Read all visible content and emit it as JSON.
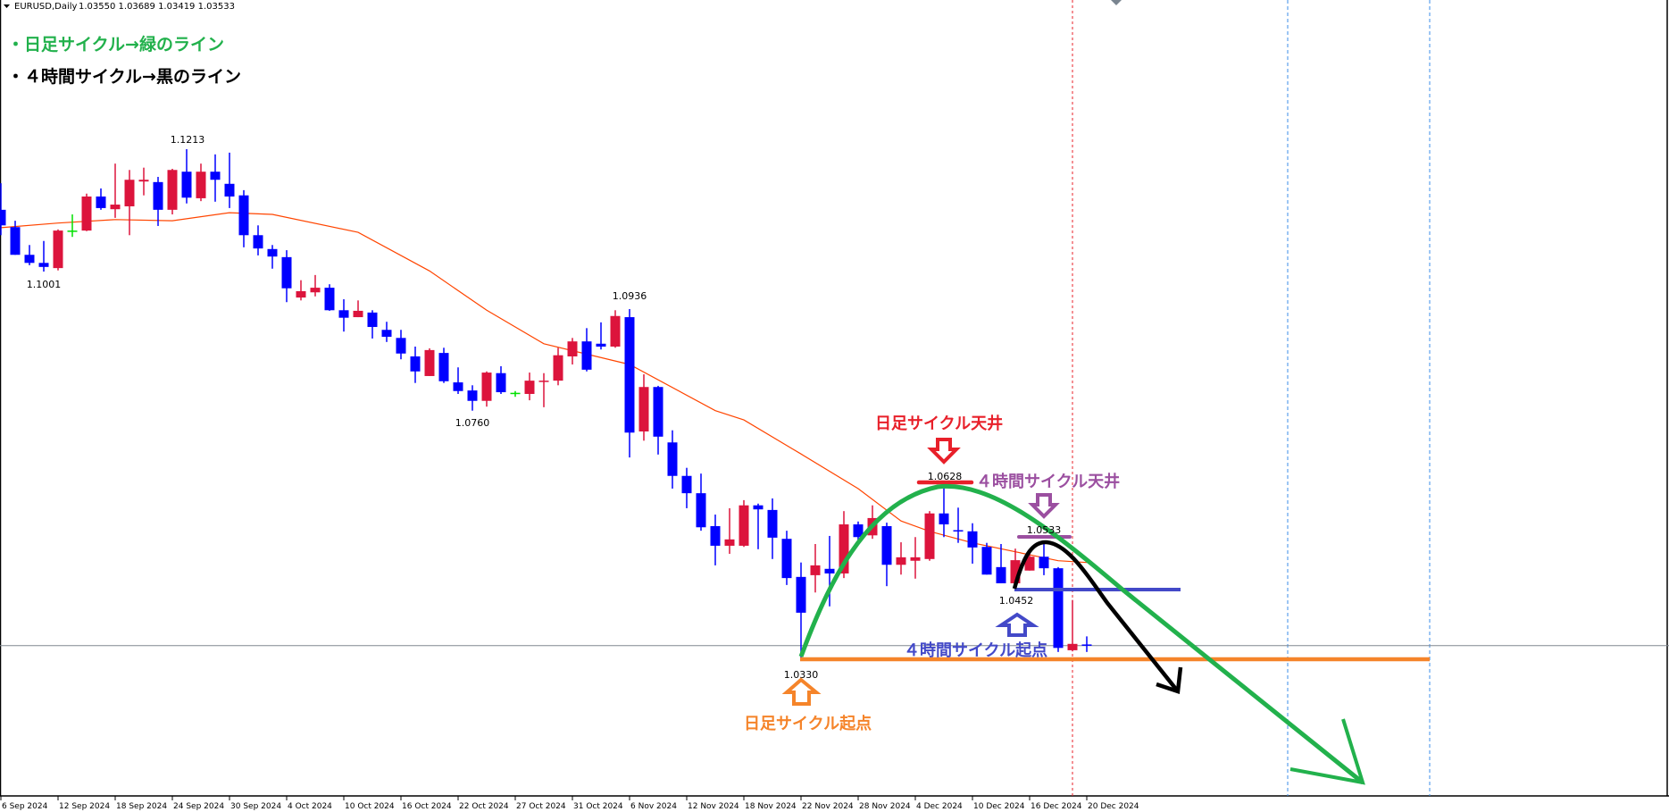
{
  "header": {
    "symbol": "EURUSD,Daily",
    "ohlc": "1.03550 1.03689 1.03419 1.03533",
    "menu_icon": "triangle-down-icon"
  },
  "legend": {
    "daily_line": "・日足サイクル→緑のライン",
    "h4_line": "・４時間サイクル→黒のライン"
  },
  "annotations": {
    "daily_top": "日足サイクル天井",
    "h4_top": "４時間サイクル天井",
    "h4_start": "４時間サイクル起点",
    "daily_start": "日足サイクル起点",
    "label_1_1213": "1.1213",
    "label_1_1001": "1.1001",
    "label_1_0936": "1.0936",
    "label_1_0760": "1.0760",
    "label_1_0628": "1.0628",
    "label_1_0533": "1.0533",
    "label_1_0452": "1.0452",
    "label_1_0330": "1.0330"
  },
  "colors": {
    "bull": "#dc143c",
    "bear": "#0000ff",
    "doji": "#00e000",
    "ma": "#ff4500",
    "daily_cycle": "#22b14c",
    "h4_cycle": "#000000",
    "daily_top": "#e8202a",
    "h4_top": "#9b4fa0",
    "h4_start": "#4349c8",
    "daily_start": "#f5842a"
  },
  "chart_data": {
    "type": "candlestick",
    "symbol": "EURUSD",
    "timeframe": "Daily",
    "x_tick_labels": [
      "6 Sep 2024",
      "12 Sep 2024",
      "18 Sep 2024",
      "24 Sep 2024",
      "30 Sep 2024",
      "4 Oct 2024",
      "10 Oct 2024",
      "16 Oct 2024",
      "22 Oct 2024",
      "27 Oct 2024",
      "31 Oct 2024",
      "6 Nov 2024",
      "12 Nov 2024",
      "18 Nov 2024",
      "22 Nov 2024",
      "28 Nov 2024",
      "4 Dec 2024",
      "10 Dec 2024",
      "16 Dec 2024",
      "20 Dec 2024"
    ],
    "ohlc": [
      [
        1.1108,
        1.1154,
        1.1064,
        1.1081
      ],
      [
        1.1078,
        1.1089,
        1.103,
        1.103
      ],
      [
        1.103,
        1.1047,
        1.1012,
        1.1016
      ],
      [
        1.1016,
        1.1054,
        1.1001,
        1.1009
      ],
      [
        1.1007,
        1.1074,
        1.1003,
        1.1072
      ],
      [
        1.1072,
        1.11,
        1.1061,
        1.1072
      ],
      [
        1.1072,
        1.1136,
        1.1071,
        1.1131
      ],
      [
        1.1131,
        1.1145,
        1.1108,
        1.1111
      ],
      [
        1.1109,
        1.1188,
        1.1094,
        1.1117
      ],
      [
        1.1114,
        1.1177,
        1.1064,
        1.116
      ],
      [
        1.1157,
        1.1181,
        1.1133,
        1.116
      ],
      [
        1.1156,
        1.1165,
        1.108,
        1.1108
      ],
      [
        1.1108,
        1.1179,
        1.11,
        1.1177
      ],
      [
        1.1174,
        1.1213,
        1.1119,
        1.1129
      ],
      [
        1.1128,
        1.1188,
        1.1123,
        1.1174
      ],
      [
        1.1174,
        1.1204,
        1.1122,
        1.116
      ],
      [
        1.1153,
        1.1207,
        1.1111,
        1.1131
      ],
      [
        1.1133,
        1.1142,
        1.1043,
        1.1064
      ],
      [
        1.1064,
        1.1081,
        1.1029,
        1.1041
      ],
      [
        1.104,
        1.1047,
        1.1006,
        1.1027
      ],
      [
        1.1026,
        1.1038,
        1.0948,
        1.0972
      ],
      [
        1.0956,
        1.0986,
        1.0951,
        1.0967
      ],
      [
        1.0965,
        1.0995,
        1.0958,
        1.0973
      ],
      [
        1.0973,
        1.0979,
        1.0933,
        1.0934
      ],
      [
        1.0934,
        1.0953,
        1.0897,
        1.0921
      ],
      [
        1.0922,
        1.0951,
        1.0922,
        1.0933
      ],
      [
        1.093,
        1.0934,
        1.0885,
        1.0905
      ],
      [
        1.09,
        1.0914,
        1.0879,
        1.0888
      ],
      [
        1.0886,
        1.09,
        1.0849,
        1.0859
      ],
      [
        1.0854,
        1.0871,
        1.0808,
        1.0828
      ],
      [
        1.082,
        1.0868,
        1.082,
        1.0865
      ],
      [
        1.086,
        1.0869,
        1.0808,
        1.0811
      ],
      [
        1.0809,
        1.0835,
        1.0789,
        1.0794
      ],
      [
        1.0795,
        1.0804,
        1.076,
        1.0777
      ],
      [
        1.0777,
        1.0828,
        1.0767,
        1.0826
      ],
      [
        1.0825,
        1.0837,
        1.0789,
        1.0792
      ],
      [
        1.0791,
        1.0794,
        1.0784,
        1.0791
      ],
      [
        1.0789,
        1.0826,
        1.0778,
        1.0812
      ],
      [
        1.0811,
        1.0825,
        1.0766,
        1.0812
      ],
      [
        1.0812,
        1.0869,
        1.0804,
        1.0856
      ],
      [
        1.0854,
        1.0886,
        1.084,
        1.088
      ],
      [
        1.088,
        1.0903,
        1.0828,
        1.0831
      ],
      [
        1.0876,
        1.0913,
        1.0866,
        1.0871
      ],
      [
        1.0871,
        1.0934,
        1.0869,
        1.0924
      ],
      [
        1.0922,
        1.0936,
        1.0679,
        1.0722
      ],
      [
        1.0724,
        1.0823,
        1.0708,
        1.0801
      ],
      [
        1.0801,
        1.0803,
        1.0684,
        1.0715
      ],
      [
        1.0705,
        1.0726,
        1.0625,
        1.0647
      ],
      [
        1.0647,
        1.0661,
        1.0591,
        1.0617
      ],
      [
        1.0617,
        1.0651,
        1.0552,
        1.0558
      ],
      [
        1.056,
        1.058,
        1.0492,
        1.0526
      ],
      [
        1.0526,
        1.0591,
        1.0512,
        1.0537
      ],
      [
        1.0526,
        1.0605,
        1.0524,
        1.0596
      ],
      [
        1.0596,
        1.0599,
        1.052,
        1.0589
      ],
      [
        1.0588,
        1.0608,
        1.0503,
        1.054
      ],
      [
        1.0538,
        1.0552,
        1.0458,
        1.047
      ],
      [
        1.0472,
        1.0497,
        1.033,
        1.041
      ],
      [
        1.0475,
        1.0529,
        1.0445,
        1.0492
      ],
      [
        1.0486,
        1.0543,
        1.0421,
        1.0478
      ],
      [
        1.0478,
        1.0586,
        1.047,
        1.0563
      ],
      [
        1.0563,
        1.0568,
        1.0532,
        1.0541
      ],
      [
        1.0544,
        1.0596,
        1.0538,
        1.0574
      ],
      [
        1.056,
        1.0566,
        1.0456,
        1.0493
      ],
      [
        1.0493,
        1.0532,
        1.0476,
        1.0506
      ],
      [
        1.05,
        1.0541,
        1.0469,
        1.0506
      ],
      [
        1.0503,
        1.0586,
        1.05,
        1.0582
      ],
      [
        1.0582,
        1.0628,
        1.0541,
        1.0563
      ],
      [
        1.0553,
        1.0592,
        1.0531,
        1.0551
      ],
      [
        1.0551,
        1.0565,
        1.0495,
        1.0523
      ],
      [
        1.0524,
        1.0531,
        1.0476,
        1.0476
      ],
      [
        1.0489,
        1.0529,
        1.0461,
        1.0461
      ],
      [
        1.0461,
        1.0521,
        1.0452,
        1.0501
      ],
      [
        1.0483,
        1.0517,
        1.0483,
        1.0507
      ],
      [
        1.0507,
        1.0533,
        1.0475,
        1.0487
      ],
      [
        1.0487,
        1.0489,
        1.0342,
        1.0349
      ],
      [
        1.0345,
        1.0432,
        1.0343,
        1.0356
      ],
      [
        1.0355,
        1.0369,
        1.0342,
        1.0353
      ]
    ],
    "moving_average": [
      [
        0,
        1.1077
      ],
      [
        4,
        1.1085
      ],
      [
        8,
        1.1091
      ],
      [
        12,
        1.1089
      ],
      [
        16,
        1.1103
      ],
      [
        19,
        1.11
      ],
      [
        25,
        1.1069
      ],
      [
        30,
        1.1002
      ],
      [
        34,
        1.0934
      ],
      [
        38,
        1.0876
      ],
      [
        44,
        1.084
      ],
      [
        50,
        1.076
      ],
      [
        52,
        1.0744
      ],
      [
        56,
        1.0685
      ],
      [
        60,
        1.0625
      ],
      [
        63,
        1.0569
      ],
      [
        65,
        1.0551
      ],
      [
        68,
        1.0531
      ],
      [
        74,
        1.05
      ],
      [
        76,
        1.0497
      ]
    ],
    "current_price": 1.0353,
    "levels": {
      "daily_start": 1.033,
      "h4_start": 1.0452,
      "daily_top": 1.0628,
      "h4_top": 1.0533
    },
    "ylim": [
      1.026,
      1.147
    ]
  }
}
